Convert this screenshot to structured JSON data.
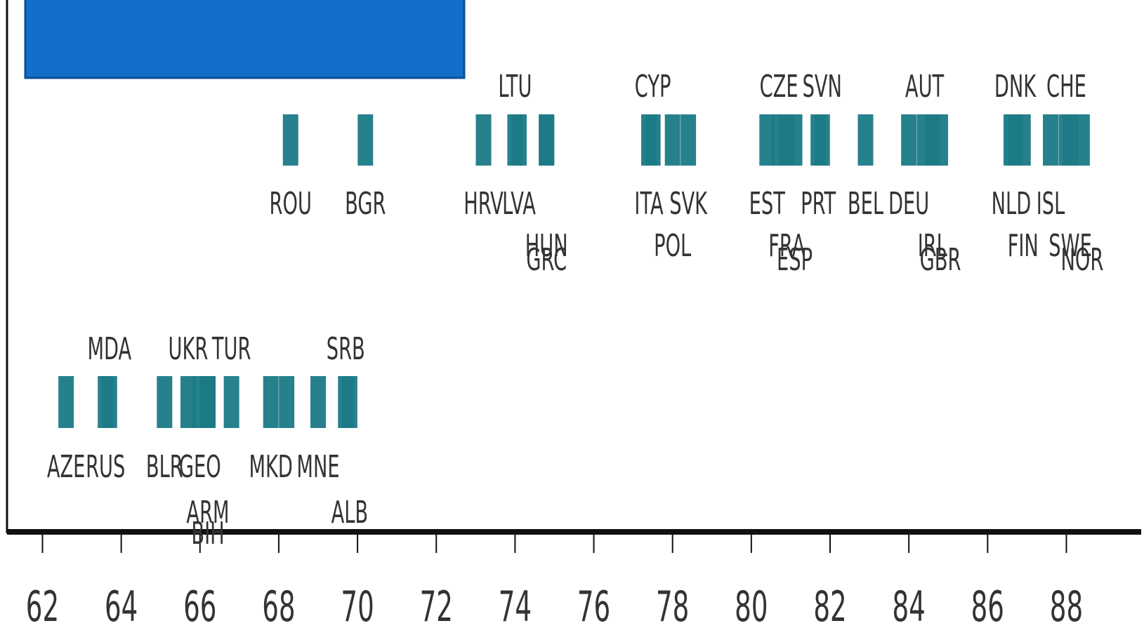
{
  "colors": {
    "mark": "#1b7a87",
    "banner": "#116ec9",
    "banner_border": "#0b4f96",
    "axis": "#111111",
    "text": "#333333"
  },
  "chart_data": {
    "type": "strip",
    "title": "",
    "xlabel": "",
    "ylabel": "",
    "xlim": [
      61.1,
      89.9
    ],
    "x_ticks": [
      62,
      64,
      66,
      68,
      70,
      72,
      74,
      76,
      78,
      80,
      82,
      84,
      86,
      88
    ],
    "grid": false,
    "rows": [
      {
        "name": "",
        "points": [
          {
            "code": "ROU",
            "value": 68.3
          },
          {
            "code": "BGR",
            "value": 70.2
          },
          {
            "code": "HRV",
            "value": 73.2
          },
          {
            "code": "LTU",
            "value": 74.0
          },
          {
            "code": "LVA",
            "value": 74.1
          },
          {
            "code": "HUN",
            "value": 74.8
          },
          {
            "code": "GRC",
            "value": 74.8
          },
          {
            "code": "ITA",
            "value": 77.4
          },
          {
            "code": "CYP",
            "value": 77.5
          },
          {
            "code": "POL",
            "value": 78.0
          },
          {
            "code": "SVK",
            "value": 78.4
          },
          {
            "code": "EST",
            "value": 80.4
          },
          {
            "code": "CZE",
            "value": 80.7
          },
          {
            "code": "FRA",
            "value": 80.9
          },
          {
            "code": "ESP",
            "value": 81.1
          },
          {
            "code": "PRT",
            "value": 81.7
          },
          {
            "code": "SVN",
            "value": 81.8
          },
          {
            "code": "BEL",
            "value": 82.9
          },
          {
            "code": "DEU",
            "value": 84.0
          },
          {
            "code": "AUT",
            "value": 84.4
          },
          {
            "code": "IRL",
            "value": 84.6
          },
          {
            "code": "GBR",
            "value": 84.8
          },
          {
            "code": "NLD",
            "value": 86.6
          },
          {
            "code": "DNK",
            "value": 86.7
          },
          {
            "code": "FIN",
            "value": 86.9
          },
          {
            "code": "ISL",
            "value": 87.6
          },
          {
            "code": "CHE",
            "value": 88.0
          },
          {
            "code": "SWE",
            "value": 88.1
          },
          {
            "code": "NOR",
            "value": 88.4
          }
        ]
      },
      {
        "name": "",
        "points": [
          {
            "code": "AZE",
            "value": 62.6
          },
          {
            "code": "RUS",
            "value": 63.6
          },
          {
            "code": "MDA",
            "value": 63.7
          },
          {
            "code": "BLR",
            "value": 65.1
          },
          {
            "code": "UKR",
            "value": 65.7
          },
          {
            "code": "GEO",
            "value": 66.0
          },
          {
            "code": "ARM",
            "value": 66.2
          },
          {
            "code": "BIH",
            "value": 66.2
          },
          {
            "code": "TUR",
            "value": 66.8
          },
          {
            "code": "MKD",
            "value": 67.8
          },
          {
            "code": "MKD2",
            "value": 68.2,
            "unlabeled": true
          },
          {
            "code": "MNE",
            "value": 69.0
          },
          {
            "code": "SRB",
            "value": 69.7
          },
          {
            "code": "ALB",
            "value": 69.8
          }
        ]
      }
    ]
  }
}
